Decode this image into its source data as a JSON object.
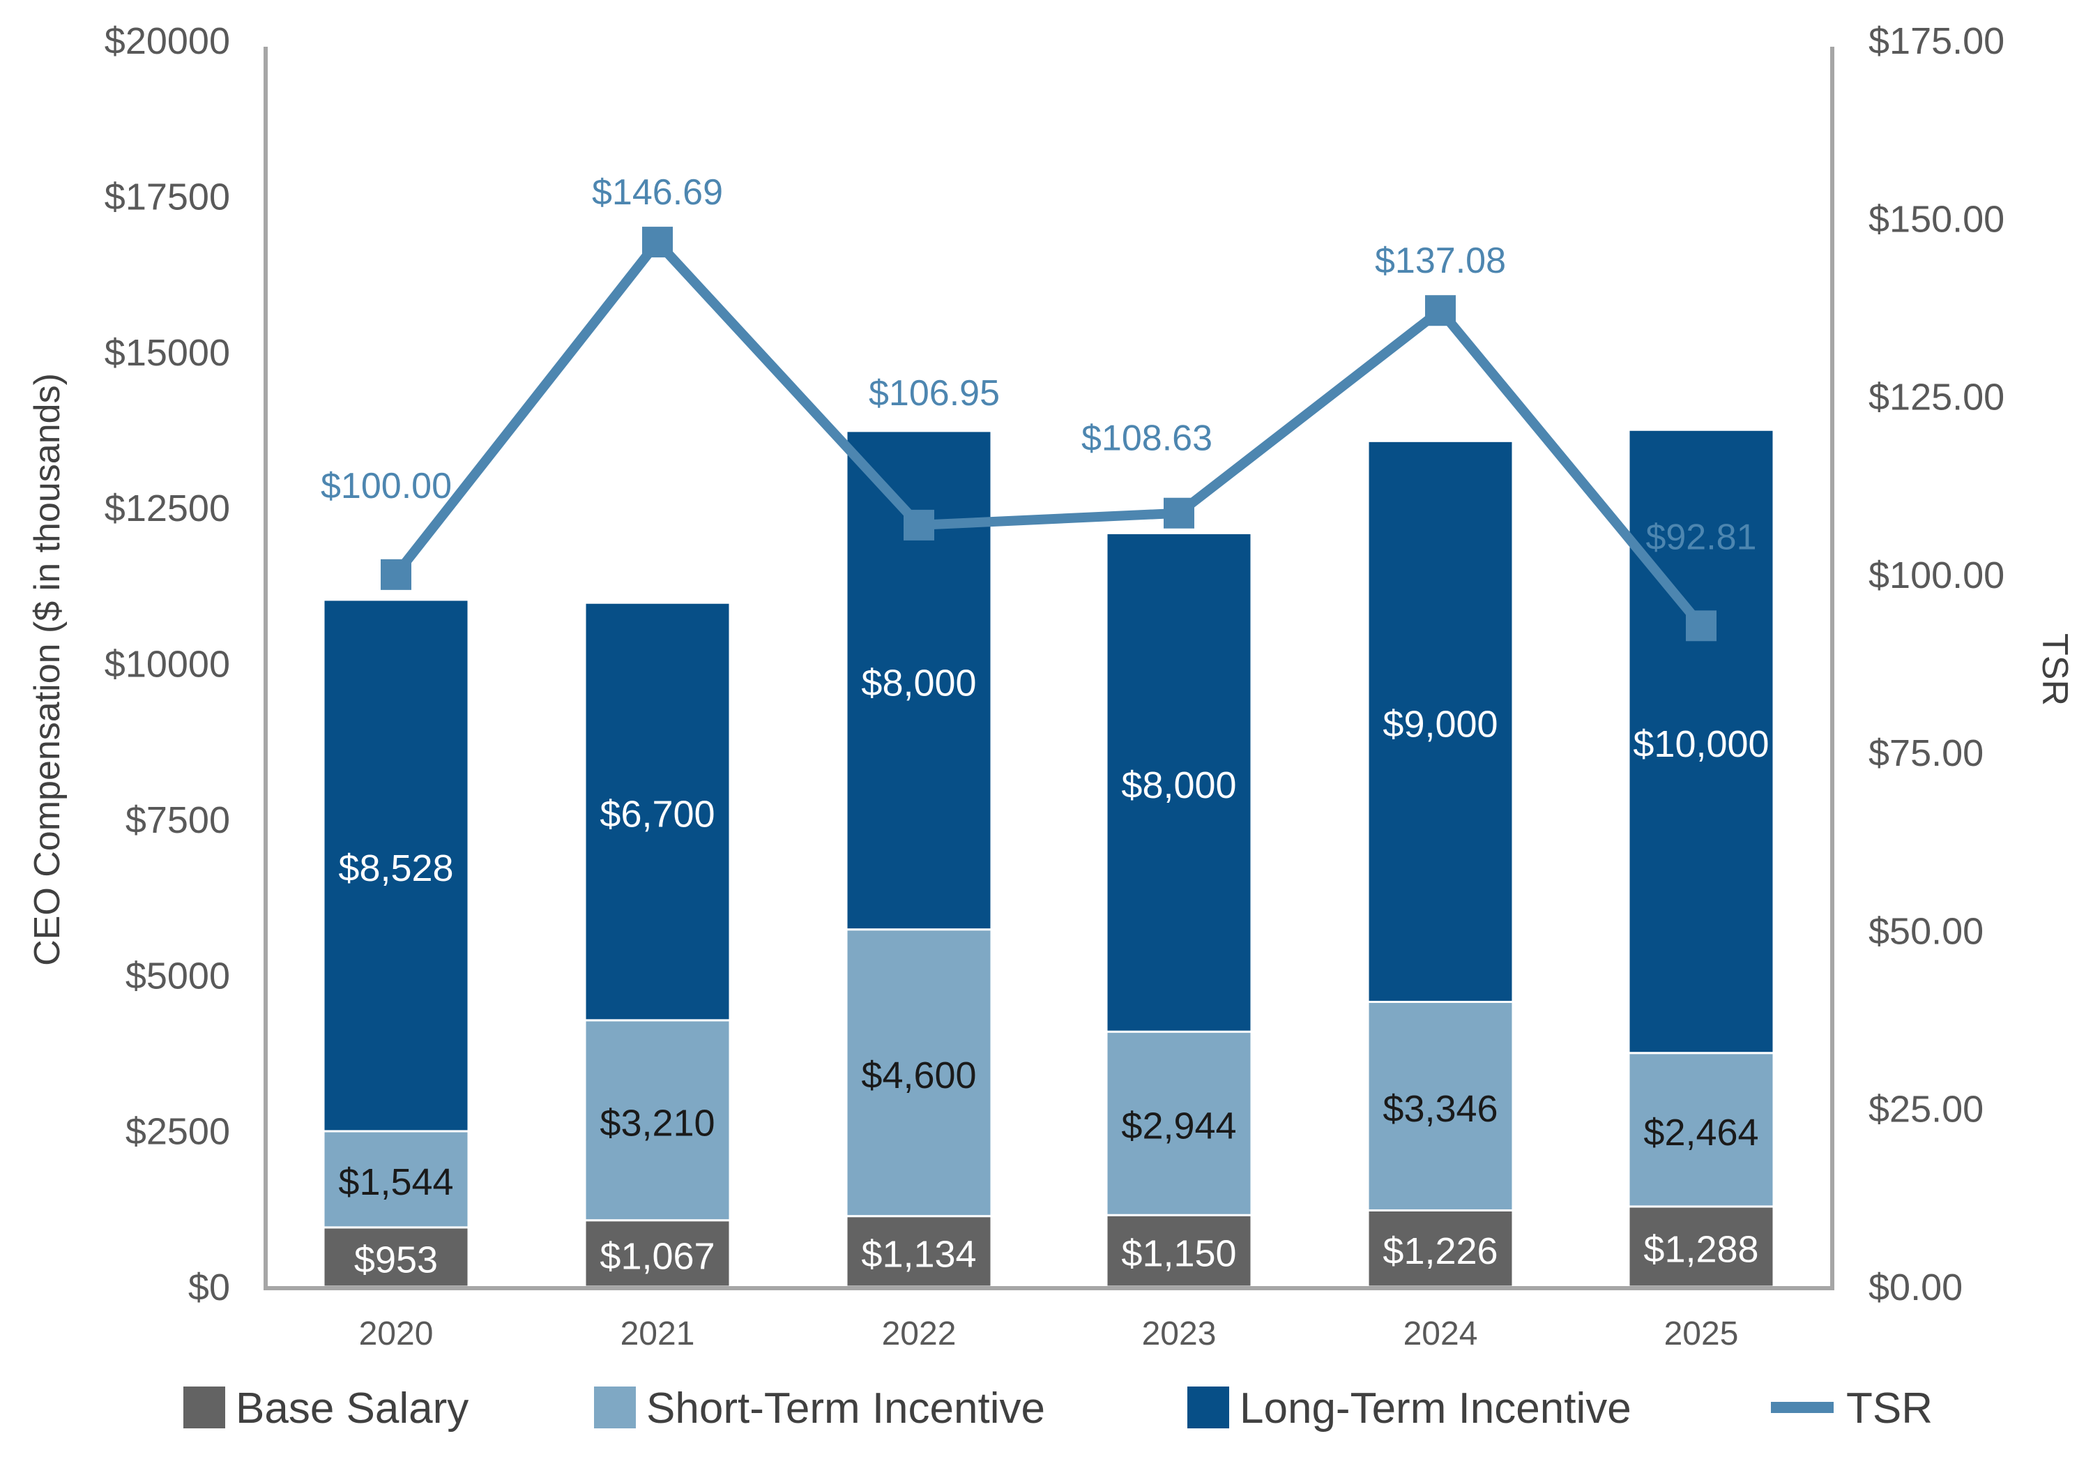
{
  "chart_data": {
    "type": "bar",
    "stacked": true,
    "categories": [
      "2020",
      "2021",
      "2022",
      "2023",
      "2024",
      "2025"
    ],
    "series": [
      {
        "name": "Base Salary",
        "type": "bar",
        "axis": "left",
        "color": "#636363",
        "values": [
          953,
          1067,
          1134,
          1150,
          1226,
          1288
        ],
        "labels": [
          "$953",
          "$1,067",
          "$1,134",
          "$1,150",
          "$1,226",
          "$1,288"
        ]
      },
      {
        "name": "Short-Term Incentive",
        "type": "bar",
        "axis": "left",
        "color": "#7FA8C4",
        "values": [
          1544,
          3210,
          4600,
          2944,
          3346,
          2464
        ],
        "labels": [
          "$1,544",
          "$3,210",
          "$4,600",
          "$2,944",
          "$3,346",
          "$2,464"
        ]
      },
      {
        "name": "Long-Term Incentive",
        "type": "bar",
        "axis": "left",
        "color": "#074F87",
        "values": [
          8528,
          6700,
          8000,
          8000,
          9000,
          10000
        ],
        "labels": [
          "$8,528",
          "$6,700",
          "$8,000",
          "$8,000",
          "$9,000",
          "$10,000"
        ]
      },
      {
        "name": "TSR",
        "type": "line",
        "axis": "right",
        "color": "#4D86B0",
        "values": [
          100.0,
          146.69,
          106.95,
          108.63,
          137.08,
          92.81
        ],
        "labels": [
          "$100.00",
          "$146.69",
          "$106.95",
          "$108.63",
          "$137.08",
          "$92.81"
        ]
      }
    ],
    "ylabel": "CEO Compensation ($ in thousands)",
    "y2label": "TSR",
    "ylim": [
      0,
      20000
    ],
    "y2lim": [
      0,
      175
    ],
    "yticks": [
      "$0",
      "$2500",
      "$5000",
      "$7500",
      "$10000",
      "$12500",
      "$15000",
      "$17500",
      "$20000"
    ],
    "y2ticks": [
      "$0.00",
      "$25.00",
      "$50.00",
      "$75.00",
      "$100.00",
      "$125.00",
      "$150.00",
      "$175.00"
    ],
    "grid": false,
    "legend": "bottom"
  }
}
